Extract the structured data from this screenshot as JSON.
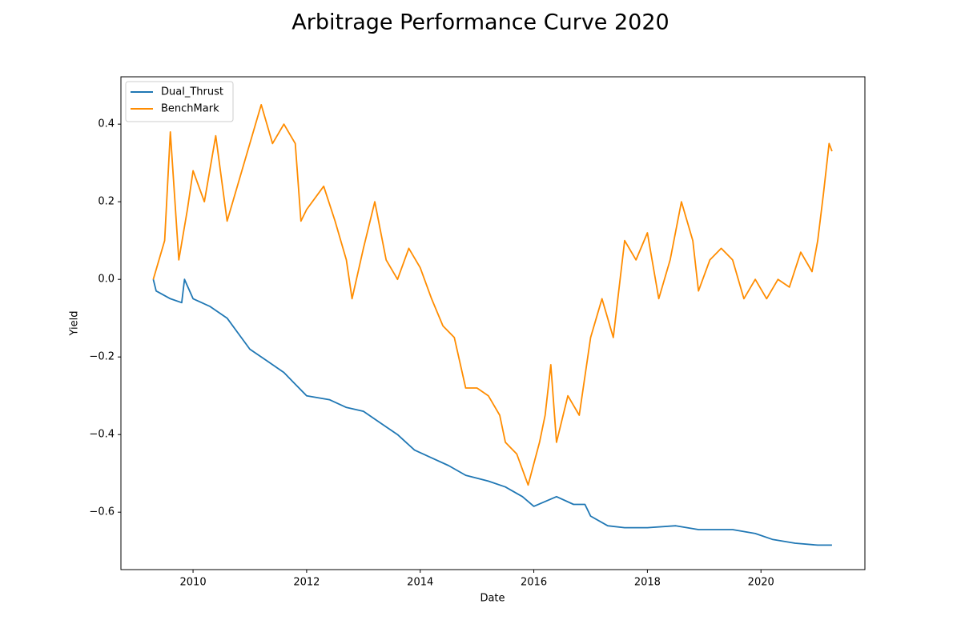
{
  "chart_data": {
    "type": "line",
    "title": "Arbitrage Performance Curve 2020",
    "x_label": "Date",
    "y_label": "Yield",
    "legend": "upper left",
    "grid": false,
    "xlim": [
      2008.73,
      2021.83
    ],
    "xticks": [
      2010,
      2012,
      2014,
      2016,
      2018,
      2020
    ],
    "ylim": [
      -0.748,
      0.522
    ],
    "yticks": [
      {
        "value": -0.6,
        "label": "−0.6"
      },
      {
        "value": -0.4,
        "label": "−0.4"
      },
      {
        "value": -0.2,
        "label": "−0.2"
      },
      {
        "value": 0.0,
        "label": "0.0"
      },
      0.2,
      0.4
    ],
    "series": [
      {
        "name": "Dual_Thrust",
        "color": "#1f77b4",
        "x": [
          2009.3,
          2009.35,
          2009.6,
          2009.8,
          2009.85,
          2010.0,
          2010.3,
          2010.6,
          2010.8,
          2011.0,
          2011.3,
          2011.6,
          2011.8,
          2012.0,
          2012.4,
          2012.7,
          2013.0,
          2013.3,
          2013.6,
          2013.9,
          2014.2,
          2014.5,
          2014.8,
          2015.2,
          2015.5,
          2015.8,
          2016.0,
          2016.4,
          2016.7,
          2016.9,
          2017.0,
          2017.3,
          2017.6,
          2018.0,
          2018.5,
          2018.9,
          2019.5,
          2019.9,
          2020.2,
          2020.6,
          2021.0,
          2021.25
        ],
        "values": [
          0.0,
          -0.03,
          -0.05,
          -0.06,
          0.0,
          -0.05,
          -0.07,
          -0.1,
          -0.14,
          -0.18,
          -0.21,
          -0.24,
          -0.27,
          -0.3,
          -0.31,
          -0.33,
          -0.34,
          -0.37,
          -0.4,
          -0.44,
          -0.46,
          -0.48,
          -0.505,
          -0.52,
          -0.535,
          -0.56,
          -0.585,
          -0.56,
          -0.58,
          -0.58,
          -0.61,
          -0.635,
          -0.64,
          -0.64,
          -0.635,
          -0.645,
          -0.645,
          -0.655,
          -0.67,
          -0.68,
          -0.685,
          -0.685
        ]
      },
      {
        "name": "BenchMark",
        "color": "#ff8c00",
        "x": [
          2009.3,
          2009.5,
          2009.6,
          2009.75,
          2009.9,
          2010.0,
          2010.2,
          2010.4,
          2010.6,
          2010.8,
          2011.0,
          2011.2,
          2011.4,
          2011.6,
          2011.8,
          2011.9,
          2012.0,
          2012.3,
          2012.5,
          2012.7,
          2012.8,
          2013.0,
          2013.2,
          2013.4,
          2013.6,
          2013.8,
          2014.0,
          2014.2,
          2014.4,
          2014.6,
          2014.8,
          2015.0,
          2015.2,
          2015.4,
          2015.5,
          2015.7,
          2015.9,
          2016.1,
          2016.2,
          2016.3,
          2016.4,
          2016.6,
          2016.8,
          2017.0,
          2017.2,
          2017.4,
          2017.6,
          2017.8,
          2018.0,
          2018.2,
          2018.4,
          2018.6,
          2018.8,
          2018.9,
          2019.1,
          2019.3,
          2019.5,
          2019.7,
          2019.9,
          2020.1,
          2020.3,
          2020.5,
          2020.7,
          2020.9,
          2021.0,
          2021.1,
          2021.2,
          2021.25
        ],
        "values": [
          0.0,
          0.1,
          0.38,
          0.05,
          0.18,
          0.28,
          0.2,
          0.37,
          0.15,
          0.25,
          0.35,
          0.45,
          0.35,
          0.4,
          0.35,
          0.15,
          0.18,
          0.24,
          0.15,
          0.05,
          -0.05,
          0.08,
          0.2,
          0.05,
          0.0,
          0.08,
          0.03,
          -0.05,
          -0.12,
          -0.15,
          -0.28,
          -0.28,
          -0.3,
          -0.35,
          -0.42,
          -0.45,
          -0.53,
          -0.42,
          -0.35,
          -0.22,
          -0.42,
          -0.3,
          -0.35,
          -0.15,
          -0.05,
          -0.15,
          0.1,
          0.05,
          0.12,
          -0.05,
          0.05,
          0.2,
          0.1,
          -0.03,
          0.05,
          0.08,
          0.05,
          -0.05,
          0.0,
          -0.05,
          0.0,
          -0.02,
          0.07,
          0.02,
          0.1,
          0.22,
          0.35,
          0.33
        ]
      }
    ]
  }
}
